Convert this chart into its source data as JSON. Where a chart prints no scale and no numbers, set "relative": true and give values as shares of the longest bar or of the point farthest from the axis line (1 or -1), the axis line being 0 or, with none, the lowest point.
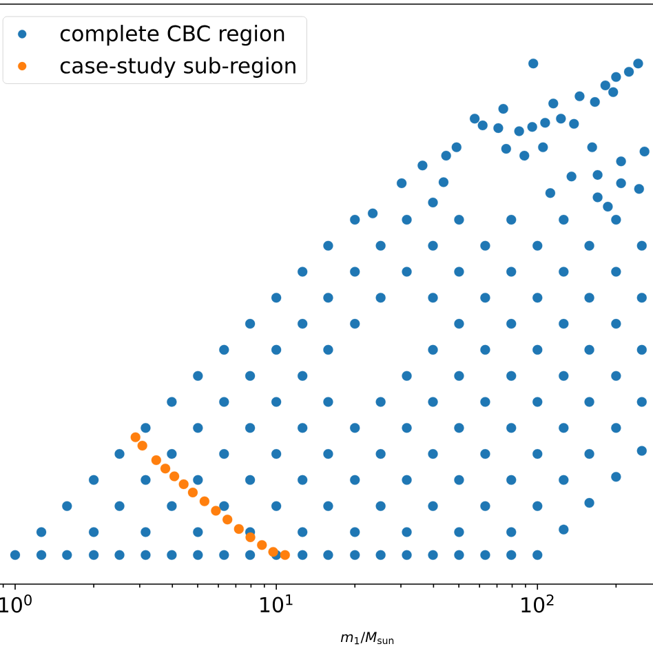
{
  "chart_data": {
    "type": "scatter",
    "relative": true,
    "log": "x",
    "marker": "circle",
    "legend": "top left",
    "xlabel": "*m*$_{1}$/*M*$_{sun}$",
    "xlim": [
      0.875,
      277
    ],
    "xticks": [
      {
        "value": 0.9,
        "label": null
      },
      {
        "value": 1,
        "label": "10$^{0}$"
      },
      {
        "value": 2,
        "label": null
      },
      {
        "value": 3,
        "label": null
      },
      {
        "value": 4,
        "label": null
      },
      {
        "value": 5,
        "label": null
      },
      {
        "value": 6,
        "label": null
      },
      {
        "value": 7,
        "label": null
      },
      {
        "value": 8,
        "label": null
      },
      {
        "value": 9,
        "label": null
      },
      {
        "value": 10,
        "label": "10$^{1}$"
      },
      {
        "value": 20,
        "label": null
      },
      {
        "value": 30,
        "label": null
      },
      {
        "value": 40,
        "label": null
      },
      {
        "value": 50,
        "label": null
      },
      {
        "value": 60,
        "label": null
      },
      {
        "value": 70,
        "label": null
      },
      {
        "value": 80,
        "label": null
      },
      {
        "value": 90,
        "label": null
      },
      {
        "value": 100,
        "label": "10$^{2}$"
      },
      {
        "value": 200,
        "label": null
      }
    ],
    "series": [
      {
        "name": "complete CBC region",
        "color": "#1f77b4",
        "x": [
          1,
          1.26,
          1.58,
          2,
          2.51,
          3.16,
          3.98,
          5.01,
          6.31,
          7.94,
          10,
          12.6,
          15.8,
          20,
          25.1,
          31.6,
          39.8,
          50.1,
          63.1,
          79.4,
          100,
          1.26,
          2,
          3.16,
          5.01,
          7.94,
          12.6,
          20,
          31.6,
          50.1,
          79.4,
          126,
          1.58,
          2.51,
          3.98,
          6.31,
          10,
          15.8,
          25.1,
          39.8,
          63.1,
          100,
          158,
          2,
          3.16,
          5.01,
          7.94,
          12.6,
          20,
          31.6,
          50.1,
          79.4,
          126,
          200,
          2.51,
          3.98,
          6.31,
          10,
          15.8,
          25.1,
          39.8,
          63.1,
          100,
          158,
          251,
          3.16,
          5.01,
          7.94,
          12.6,
          20,
          31.6,
          50.1,
          79.4,
          126,
          200,
          3.98,
          6.31,
          10,
          15.8,
          25.1,
          39.8,
          63.1,
          100,
          158,
          251,
          5.01,
          7.94,
          12.6,
          31.6,
          50.1,
          79.4,
          126,
          200,
          6.31,
          10,
          15.8,
          39.8,
          63.1,
          100,
          158,
          251,
          7.94,
          12.6,
          20,
          50.1,
          79.4,
          126,
          200,
          10,
          15.8,
          25.1,
          39.8,
          63.1,
          100,
          158,
          251,
          12.6,
          20,
          31.6,
          50.1,
          79.4,
          126,
          200,
          15.8,
          25.1,
          39.8,
          63.1,
          100,
          158,
          251,
          20,
          31.6,
          50.1,
          79.4,
          126,
          200,
          96.4,
          243,
          224,
          200,
          182,
          195,
          166,
          145,
          115,
          74,
          57.5,
          61.7,
          70.8,
          85.1,
          95.5,
          107,
          123,
          138,
          162,
          257,
          209,
          44.7,
          49,
          36.3,
          30.2,
          23.4,
          105,
          89.1,
          75.9,
          135,
          170,
          245,
          186,
          43.7,
          39.8,
          112,
          170,
          209
        ],
        "values": [
          0.056,
          0.056,
          0.056,
          0.056,
          0.056,
          0.056,
          0.056,
          0.056,
          0.056,
          0.056,
          0.056,
          0.056,
          0.056,
          0.056,
          0.056,
          0.056,
          0.056,
          0.056,
          0.056,
          0.056,
          0.056,
          0.1,
          0.1,
          0.1,
          0.1,
          0.1,
          0.1,
          0.1,
          0.1,
          0.1,
          0.1,
          0.105,
          0.15,
          0.15,
          0.15,
          0.15,
          0.15,
          0.15,
          0.15,
          0.15,
          0.15,
          0.15,
          0.156,
          0.2,
          0.2,
          0.2,
          0.2,
          0.2,
          0.2,
          0.2,
          0.2,
          0.2,
          0.2,
          0.206,
          0.25,
          0.25,
          0.25,
          0.25,
          0.25,
          0.25,
          0.25,
          0.25,
          0.25,
          0.25,
          0.256,
          0.3,
          0.3,
          0.3,
          0.3,
          0.3,
          0.3,
          0.3,
          0.3,
          0.3,
          0.3,
          0.35,
          0.35,
          0.35,
          0.35,
          0.35,
          0.35,
          0.35,
          0.35,
          0.35,
          0.35,
          0.4,
          0.4,
          0.4,
          0.4,
          0.4,
          0.4,
          0.4,
          0.4,
          0.45,
          0.45,
          0.45,
          0.45,
          0.45,
          0.45,
          0.45,
          0.45,
          0.5,
          0.5,
          0.5,
          0.5,
          0.5,
          0.5,
          0.5,
          0.55,
          0.55,
          0.55,
          0.55,
          0.55,
          0.55,
          0.55,
          0.55,
          0.6,
          0.6,
          0.6,
          0.6,
          0.6,
          0.6,
          0.6,
          0.65,
          0.65,
          0.65,
          0.65,
          0.65,
          0.65,
          0.65,
          0.7,
          0.7,
          0.7,
          0.7,
          0.7,
          0.7,
          1,
          1,
          0.984,
          0.974,
          0.958,
          0.945,
          0.926,
          0.937,
          0.923,
          0.913,
          0.894,
          0.881,
          0.876,
          0.87,
          0.878,
          0.886,
          0.894,
          0.884,
          0.839,
          0.831,
          0.812,
          0.823,
          0.839,
          0.804,
          0.77,
          0.712,
          0.839,
          0.823,
          0.836,
          0.783,
          0.786,
          0.759,
          0.725,
          0.772,
          0.733,
          0.751,
          0.743,
          0.77
        ]
      },
      {
        "name": "case-study sub-region",
        "color": "#ff7f0e",
        "x": [
          2.89,
          3.07,
          3.47,
          3.76,
          4.07,
          4.42,
          4.79,
          5.31,
          5.87,
          6.5,
          7.19,
          7.96,
          8.81,
          9.73,
          10.8
        ],
        "values": [
          0.282,
          0.266,
          0.238,
          0.222,
          0.207,
          0.192,
          0.176,
          0.159,
          0.141,
          0.124,
          0.106,
          0.09,
          0.075,
          0.062,
          0.056
        ]
      }
    ]
  }
}
